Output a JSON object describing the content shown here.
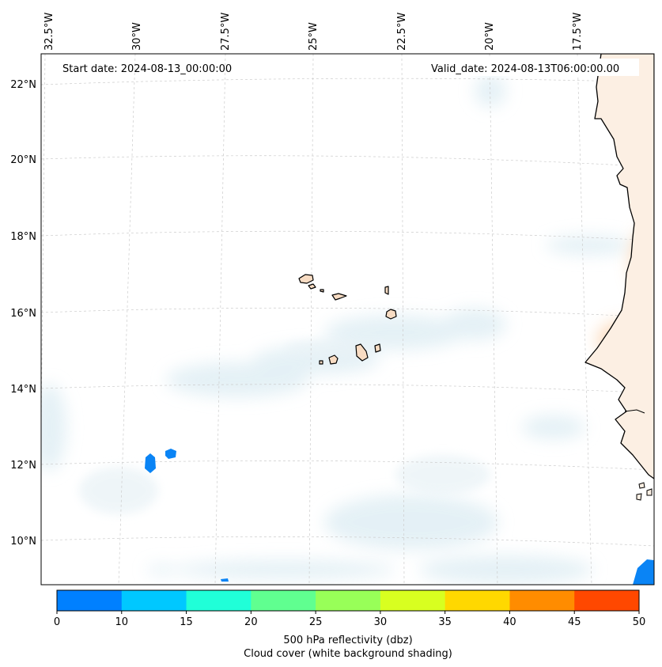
{
  "map": {
    "start_label": "Start date: 2024-08-13_00:00:00",
    "valid_label": "Valid_date: 2024-08-13T06:00:00.00",
    "lon_labels": [
      "32.5°W",
      "30°W",
      "27.5°W",
      "25°W",
      "22.5°W",
      "20°W",
      "17.5°W"
    ],
    "lat_labels": [
      "22°N",
      "20°N",
      "18°N",
      "16°N",
      "14°N",
      "12°N",
      "10°N"
    ],
    "colors": {
      "coast": "#000000",
      "land_fill": "#f8dcc3",
      "cloud": "#dcecf3",
      "grid": "#cccccc"
    }
  },
  "colorbar": {
    "ticks": [
      "0",
      "10",
      "15",
      "20",
      "25",
      "30",
      "35",
      "40",
      "45",
      "50"
    ],
    "colors": [
      "#0080ff",
      "#00c8ff",
      "#20ffd8",
      "#60ff90",
      "#98ff58",
      "#d8ff20",
      "#ffd800",
      "#ff8c00",
      "#ff4800"
    ],
    "label_line1": "500 hPa reflectivity (dbz)",
    "label_line2": "Cloud cover (white background shading)"
  }
}
